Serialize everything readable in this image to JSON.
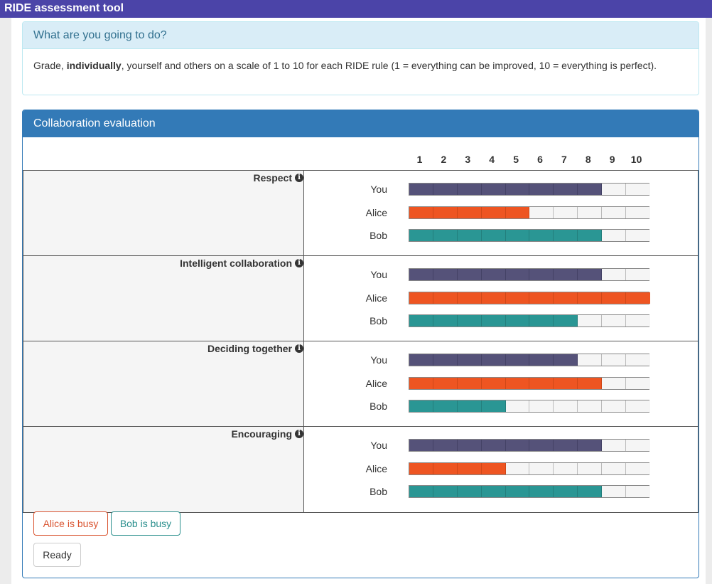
{
  "app": {
    "title": "RIDE assessment tool"
  },
  "info": {
    "heading": "What are you going to do?",
    "text_before": "Grade, ",
    "text_bold": "individually",
    "text_after": ", yourself and others on a scale of 1 to 10 for each RIDE rule (1 = everything can be improved, 10 = everything is perfect)."
  },
  "evaluation": {
    "heading": "Collaboration evaluation",
    "scale": [
      "1",
      "2",
      "3",
      "4",
      "5",
      "6",
      "7",
      "8",
      "9",
      "10"
    ],
    "colors": {
      "You": "#555279",
      "Alice": "#ee5522",
      "Bob": "#2a9694"
    },
    "rules": [
      {
        "name": "Respect",
        "icon": "info-circle-icon",
        "grades": [
          {
            "person": "You",
            "value": 8
          },
          {
            "person": "Alice",
            "value": 5
          },
          {
            "person": "Bob",
            "value": 8
          }
        ]
      },
      {
        "name": "Intelligent collaboration",
        "icon": "info-circle-icon",
        "grades": [
          {
            "person": "You",
            "value": 8
          },
          {
            "person": "Alice",
            "value": 10
          },
          {
            "person": "Bob",
            "value": 7
          }
        ]
      },
      {
        "name": "Deciding together",
        "icon": "info-circle-icon",
        "grades": [
          {
            "person": "You",
            "value": 7
          },
          {
            "person": "Alice",
            "value": 8
          },
          {
            "person": "Bob",
            "value": 4
          }
        ]
      },
      {
        "name": "Encouraging",
        "icon": "info-circle-icon",
        "grades": [
          {
            "person": "You",
            "value": 8
          },
          {
            "person": "Alice",
            "value": 4
          },
          {
            "person": "Bob",
            "value": 8
          }
        ]
      }
    ]
  },
  "buttons": {
    "alice_busy": "Alice is busy",
    "bob_busy": "Bob is busy",
    "ready": "Ready"
  }
}
